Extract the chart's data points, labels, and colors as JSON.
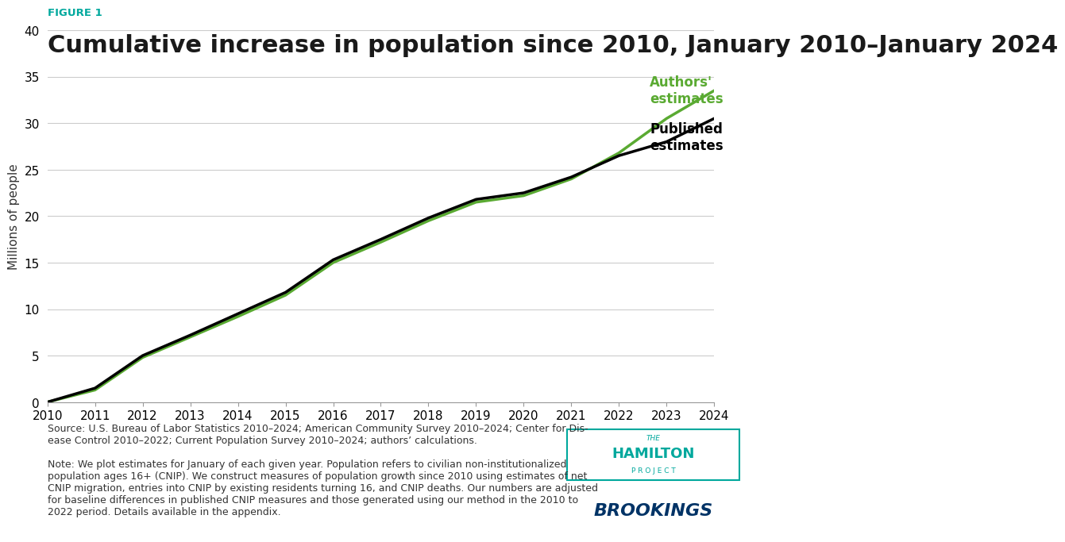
{
  "figure_label": "FIGURE 1",
  "figure_label_color": "#00a89d",
  "title": "Cumulative increase in population since 2010, January 2010–January 2024",
  "ylabel": "Millions of people",
  "ylim": [
    0,
    40
  ],
  "yticks": [
    0,
    5,
    10,
    15,
    20,
    25,
    30,
    35,
    40
  ],
  "xlim": [
    2010,
    2024
  ],
  "xticks": [
    2010,
    2011,
    2012,
    2013,
    2014,
    2015,
    2016,
    2017,
    2018,
    2019,
    2020,
    2021,
    2022,
    2023,
    2024
  ],
  "published_x": [
    2010,
    2011,
    2012,
    2013,
    2014,
    2015,
    2016,
    2017,
    2018,
    2019,
    2020,
    2021,
    2022,
    2023,
    2024
  ],
  "published_y": [
    0,
    1.5,
    5.0,
    7.2,
    9.5,
    11.8,
    15.3,
    17.5,
    19.8,
    21.8,
    22.5,
    24.2,
    26.5,
    28.0,
    30.5
  ],
  "authors_x": [
    2010,
    2011,
    2012,
    2013,
    2014,
    2015,
    2016,
    2017,
    2018,
    2019,
    2020,
    2021,
    2022,
    2023,
    2024
  ],
  "authors_y": [
    0,
    1.3,
    4.8,
    7.0,
    9.2,
    11.5,
    15.0,
    17.2,
    19.5,
    21.5,
    22.2,
    24.0,
    26.8,
    30.5,
    33.5
  ],
  "published_color": "#000000",
  "authors_color": "#5aaa32",
  "published_label": "Published\nestimates",
  "authors_label": "Authors'\nestimates",
  "line_width": 2.5,
  "source_text": "Source: U.S. Bureau of Labor Statistics 2010–2024; American Community Survey 2010–2024; Center for Dis-\nease Control 2010–2022; Current Population Survey 2010–2024; authors’ calculations.",
  "note_text": "Note: We plot estimates for January of each given year. Population refers to civilian non-institutionalized\npopulation ages 16+ (CNIP). We construct measures of population growth since 2010 using estimates of net\nCNIP migration, entries into CNIP by existing residents turning 16, and CNIP deaths. Our numbers are adjusted\nfor baseline differences in published CNIP measures and those generated using our method in the 2010 to\n2022 period. Details available in the appendix.",
  "background_color": "#ffffff",
  "grid_color": "#cccccc",
  "title_fontsize": 22,
  "label_fontsize": 11,
  "tick_fontsize": 11,
  "annotation_fontsize": 12,
  "footer_fontsize": 9,
  "hamilton_color": "#00a89d",
  "brookings_color": "#003366"
}
